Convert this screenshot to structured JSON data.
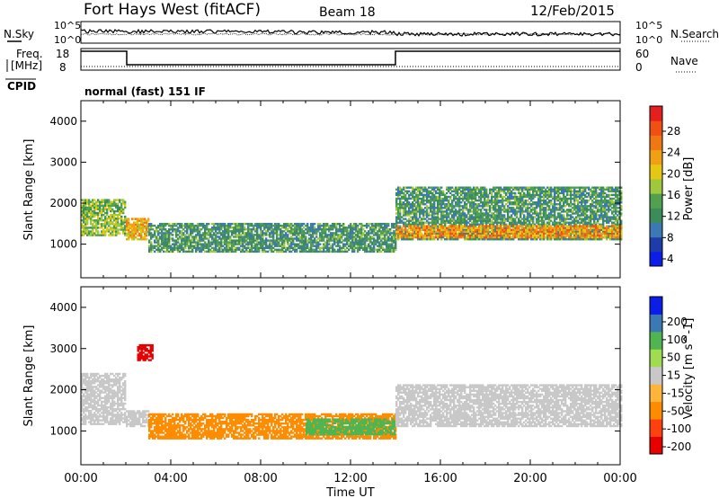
{
  "header": {
    "title": "Fort Hays West (fitACF)",
    "beam": "Beam 18",
    "date": "12/Feb/2015"
  },
  "noise_panel": {
    "left_label": "N.Sky",
    "right_label": "N.Search",
    "left_ticks": [
      "10^5",
      "10^0"
    ],
    "right_ticks": [
      "10^5",
      "10^0"
    ]
  },
  "freq_panel": {
    "left_label_1": "Freq.",
    "left_label_2": "[MHz]",
    "right_label": "Nave",
    "left_ticks": [
      "18",
      "8"
    ],
    "right_ticks": [
      "60",
      "0"
    ]
  },
  "cpid": {
    "label": "CPID",
    "value": "normal (fast) 151 IF"
  },
  "time_axis": {
    "label": "Time UT",
    "ticks": [
      "00:00",
      "04:00",
      "08:00",
      "12:00",
      "16:00",
      "20:00",
      "00:00"
    ]
  },
  "colors": {
    "power": [
      "#0a1ee8",
      "#1e3ca8",
      "#3c78b4",
      "#3c8c5a",
      "#50a050",
      "#a0c83c",
      "#e6c814",
      "#f0a014",
      "#f07814",
      "#f05014",
      "#e61e1e"
    ],
    "velocity": [
      "#e60000",
      "#ff4010",
      "#ff8c00",
      "#ffb43c",
      "#c8c8c8",
      "#a0dc50",
      "#50b450",
      "#3c78b4",
      "#0a1ee8"
    ]
  },
  "chart_data": [
    {
      "type": "heatmap",
      "title": "",
      "ylabel": "Slant Range [km]",
      "xlabel": "Time UT",
      "ylim": [
        180,
        4500
      ],
      "xlim": [
        0,
        24
      ],
      "yticks": [
        1000,
        2000,
        3000,
        4000
      ],
      "colorbar_label": "Power [dB]",
      "colorbar_ticks": [
        "28",
        "24",
        "20",
        "16",
        "12",
        "8",
        "4"
      ],
      "colorbar_range": [
        0,
        30
      ],
      "bands": [
        {
          "t0": 0.0,
          "t1": 2.0,
          "r_lo": 1200,
          "r_hi": 2100,
          "value": 14
        },
        {
          "t0": 2.0,
          "t1": 3.0,
          "r_lo": 1100,
          "r_hi": 1600,
          "value": 20
        },
        {
          "t0": 3.0,
          "t1": 14.0,
          "r_lo": 800,
          "r_hi": 1500,
          "value": 10
        },
        {
          "t0": 14.0,
          "t1": 24.0,
          "r_lo": 1100,
          "r_hi": 2400,
          "value": 10
        },
        {
          "t0": 14.0,
          "t1": 24.0,
          "r_lo": 1150,
          "r_hi": 1450,
          "value": 22
        }
      ]
    },
    {
      "type": "heatmap",
      "title": "",
      "ylabel": "Slant Range [km]",
      "xlabel": "Time UT",
      "ylim": [
        180,
        4500
      ],
      "xlim": [
        0,
        24
      ],
      "yticks": [
        1000,
        2000,
        3000,
        4000
      ],
      "colorbar_label": "Velocity [m s^-1]",
      "colorbar_ticks": [
        "200",
        "100",
        "50",
        "15",
        "-15",
        "-50",
        "-100",
        "-200"
      ],
      "bands": [
        {
          "t0": 0.0,
          "t1": 2.0,
          "r_lo": 1150,
          "r_hi": 2400,
          "value": 0
        },
        {
          "t0": 2.0,
          "t1": 3.0,
          "r_lo": 1100,
          "r_hi": 1500,
          "value": 0
        },
        {
          "t0": 3.0,
          "t1": 14.0,
          "r_lo": 800,
          "r_hi": 1400,
          "value": -40
        },
        {
          "t0": 10.0,
          "t1": 14.0,
          "r_lo": 900,
          "r_hi": 1300,
          "value": 40
        },
        {
          "t0": 14.0,
          "t1": 24.0,
          "r_lo": 1100,
          "r_hi": 2100,
          "value": 0
        },
        {
          "t0": 2.5,
          "t1": 3.2,
          "r_lo": 2700,
          "r_hi": 3100,
          "value": -200
        }
      ]
    }
  ]
}
